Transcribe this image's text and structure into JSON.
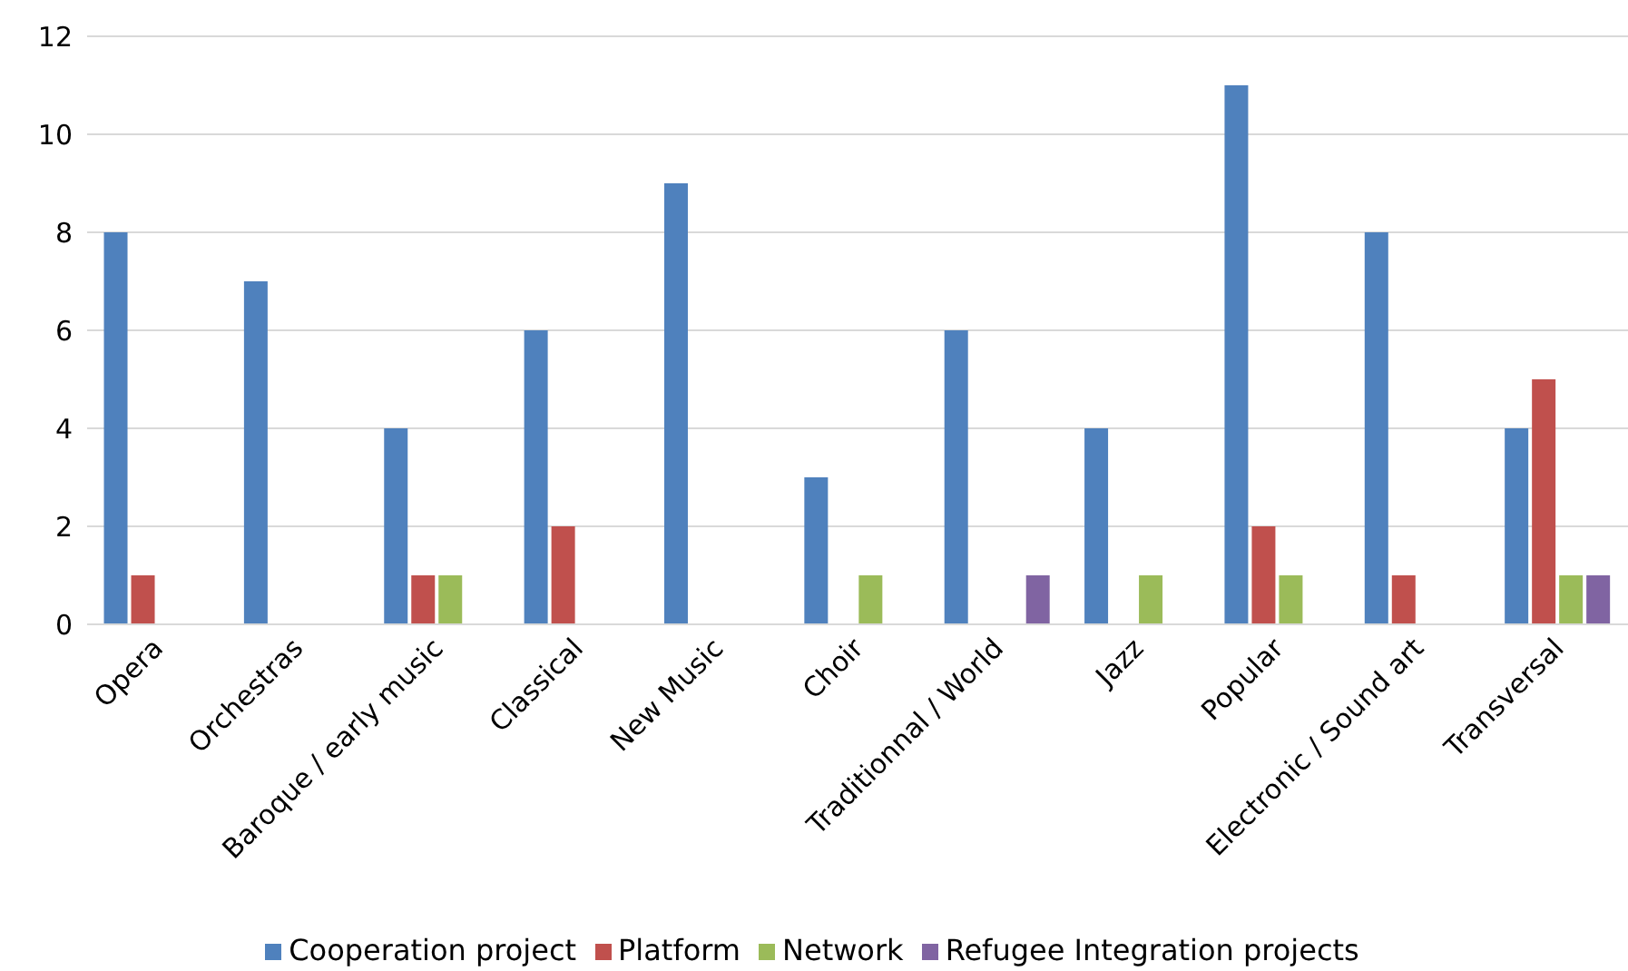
{
  "chart_data": {
    "type": "bar",
    "categories": [
      "Opera",
      "Orchestras",
      "Baroque / early music",
      "Classical",
      "New Music",
      "Choir",
      "Traditionnal / World",
      "Jazz",
      "Popular",
      "Electronic / Sound art",
      "Transversal"
    ],
    "series": [
      {
        "name": "Cooperation project",
        "color": "#4f81bd",
        "values": [
          8,
          7,
          4,
          6,
          9,
          3,
          6,
          4,
          11,
          8,
          4
        ]
      },
      {
        "name": "Platform",
        "color": "#c0504d",
        "values": [
          1,
          0,
          1,
          2,
          0,
          0,
          0,
          0,
          2,
          1,
          5
        ]
      },
      {
        "name": "Network",
        "color": "#9bbb59",
        "values": [
          0,
          0,
          1,
          0,
          0,
          1,
          0,
          1,
          1,
          0,
          1
        ]
      },
      {
        "name": "Refugee Integration projects",
        "color": "#8064a2",
        "values": [
          0,
          0,
          0,
          0,
          0,
          0,
          1,
          0,
          0,
          0,
          1
        ]
      }
    ],
    "ylim": [
      0,
      12
    ],
    "yticks": [
      0,
      2,
      4,
      6,
      8,
      10,
      12
    ],
    "grid": "y",
    "legend": "bottom"
  }
}
